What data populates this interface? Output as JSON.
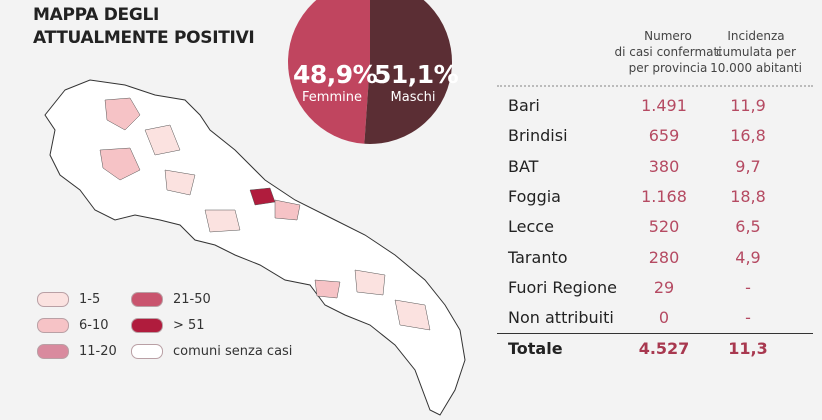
{
  "title": [
    "MAPPA DEGLI",
    "ATTUALMENTE POSITIVI"
  ],
  "gender": {
    "female": {
      "value": "48,9%",
      "label": "Femmine",
      "pct": 48.9,
      "color": "#c0455f"
    },
    "male": {
      "value": "51,1%",
      "label": "Maschi",
      "pct": 51.1,
      "color": "#5b2e34"
    }
  },
  "table": {
    "headers": [
      "Numero\ndi casi confermati\nper provincia",
      "Incidenza\ncumulata per\n10.000 abitanti"
    ],
    "rows": [
      [
        "Bari",
        "1.491",
        "11,9"
      ],
      [
        "Brindisi",
        "659",
        "16,8"
      ],
      [
        "BAT",
        "380",
        "9,7"
      ],
      [
        "Foggia",
        "1.168",
        "18,8"
      ],
      [
        "Lecce",
        "520",
        "6,5"
      ],
      [
        "Taranto",
        "280",
        "4,9"
      ],
      [
        "Fuori Regione",
        "29",
        "-"
      ],
      [
        "Non attribuiti",
        "0",
        "-"
      ]
    ],
    "total": [
      "Totale",
      "4.527",
      "11,3"
    ]
  },
  "legend": [
    {
      "label": "1-5",
      "color": "#fbe2e0"
    },
    {
      "label": "6-10",
      "color": "#f6c3c6"
    },
    {
      "label": "11-20",
      "color": "#d98a9e"
    },
    {
      "label": "21-50",
      "color": "#c9546e"
    },
    {
      "label": "> 51",
      "color": "#b01c3d"
    },
    {
      "label": "comuni senza casi",
      "color": "#ffffff"
    }
  ],
  "chart_data": {
    "type": "pie",
    "slices": [
      {
        "name": "Femmine",
        "value": 48.9
      },
      {
        "name": "Maschi",
        "value": 51.1
      }
    ]
  }
}
